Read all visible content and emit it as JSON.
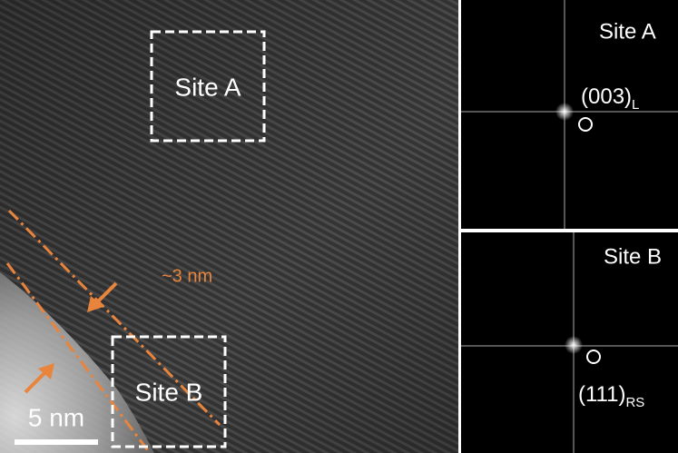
{
  "main_image": {
    "boxes": [
      {
        "label": "Site A"
      },
      {
        "label": "Site B"
      }
    ],
    "annotation": "~3 nm",
    "scale_bar": "5 nm"
  },
  "fft_panels": [
    {
      "label": "Site A",
      "spot": {
        "index": "(003)",
        "subscript": "L"
      }
    },
    {
      "label": "Site B",
      "spot": {
        "index": "(111)",
        "subscript": "RS"
      }
    }
  ]
}
